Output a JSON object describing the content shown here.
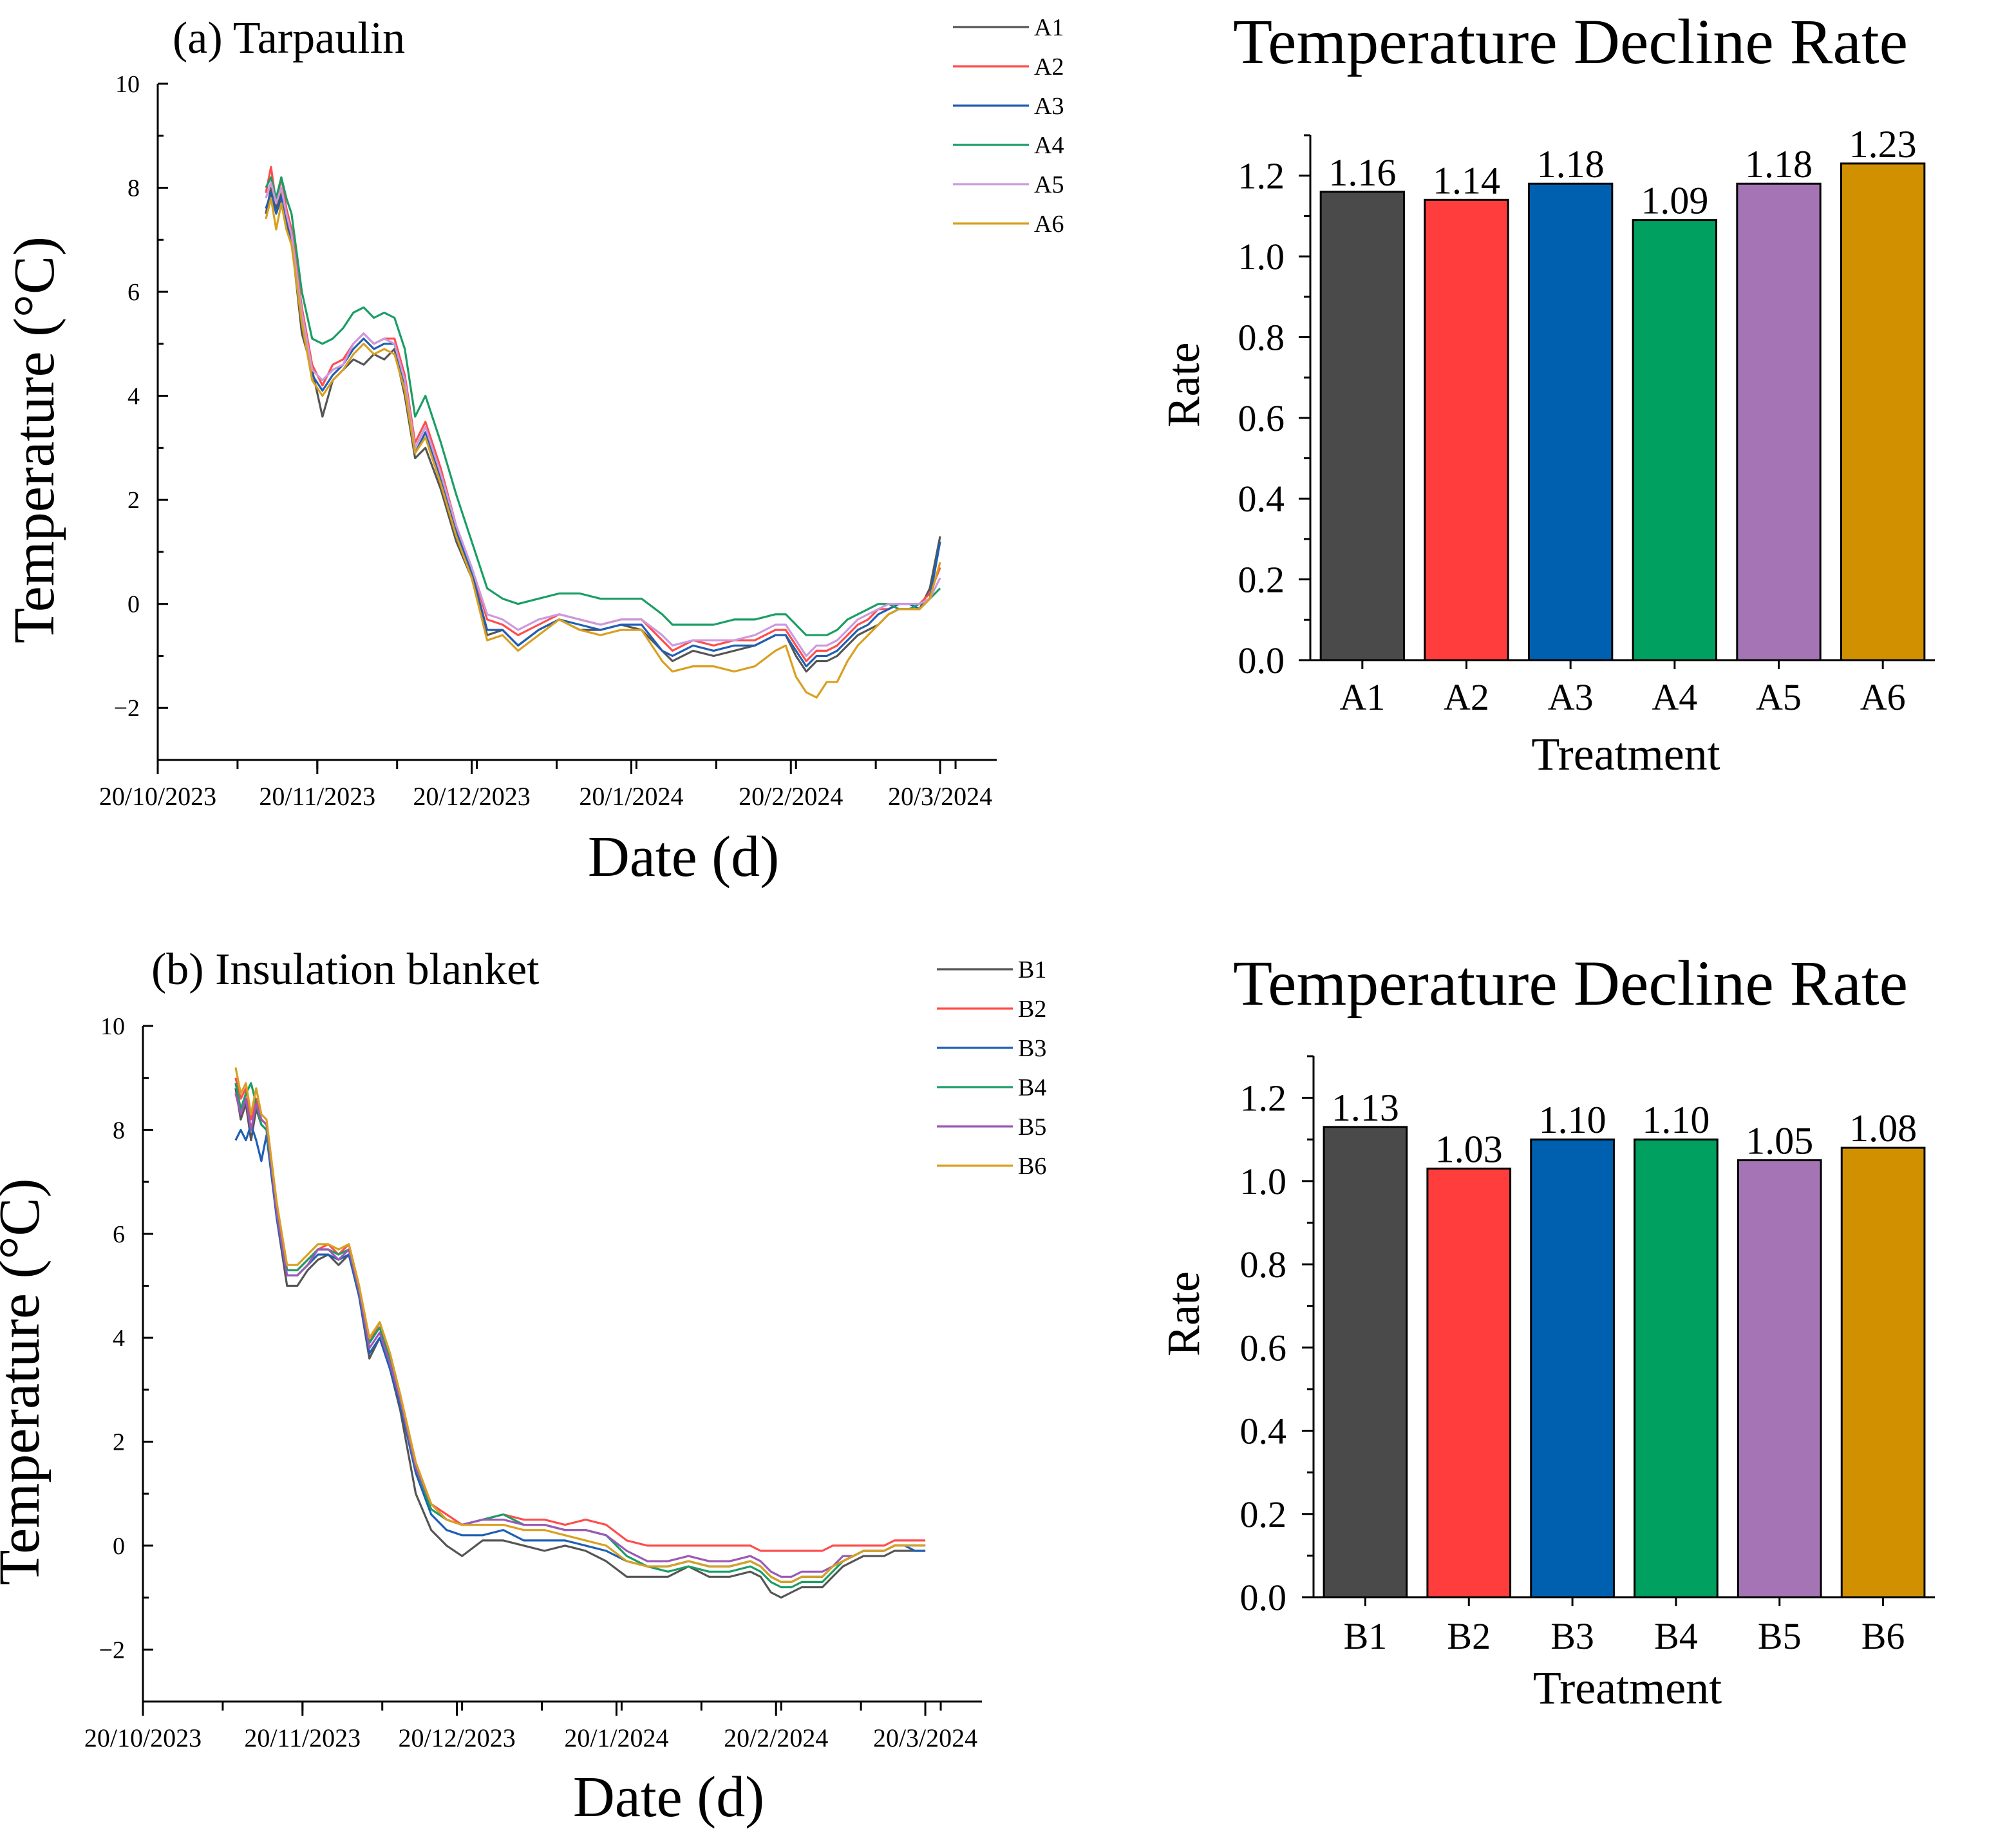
{
  "chart_data": [
    {
      "type": "line",
      "id": "a",
      "title": "(a) Tarpaulin",
      "xlabel": "Date (d)",
      "ylabel": "Temperature (°C)",
      "ylim": [
        -3,
        10
      ],
      "yticks": [
        -2,
        0,
        2,
        4,
        6,
        8,
        10
      ],
      "xlim": [
        0,
        163
      ],
      "xticks": [
        {
          "day": 0,
          "label": "20/10/2023"
        },
        {
          "day": 31,
          "label": "20/11/2023"
        },
        {
          "day": 61,
          "label": "20/12/2023"
        },
        {
          "day": 92,
          "label": "20/1/2024"
        },
        {
          "day": 123,
          "label": "20/2/2024"
        },
        {
          "day": 152,
          "label": "20/3/2024"
        }
      ],
      "x": [
        21,
        22,
        23,
        24,
        25,
        26,
        28,
        30,
        32,
        34,
        36,
        38,
        40,
        42,
        44,
        46,
        48,
        50,
        52,
        55,
        58,
        61,
        64,
        67,
        70,
        74,
        78,
        82,
        86,
        90,
        94,
        98,
        100,
        104,
        108,
        112,
        116,
        120,
        122,
        124,
        126,
        128,
        130,
        132,
        134,
        136,
        138,
        140,
        142,
        144,
        146,
        148,
        150,
        152
      ],
      "series": [
        {
          "name": "A1",
          "color": "#555555",
          "values": [
            7.5,
            8.0,
            7.6,
            7.9,
            7.3,
            7.0,
            5.2,
            4.5,
            3.6,
            4.3,
            4.5,
            4.7,
            4.6,
            4.8,
            4.7,
            4.9,
            4.0,
            2.8,
            3.0,
            2.2,
            1.2,
            0.5,
            -0.6,
            -0.5,
            -0.8,
            -0.5,
            -0.3,
            -0.5,
            -0.5,
            -0.4,
            -0.5,
            -0.9,
            -1.1,
            -0.9,
            -1.0,
            -0.9,
            -0.8,
            -0.6,
            -0.6,
            -1.0,
            -1.3,
            -1.1,
            -1.1,
            -1.0,
            -0.8,
            -0.6,
            -0.5,
            -0.4,
            -0.2,
            -0.1,
            -0.1,
            -0.1,
            0.3,
            1.3
          ]
        },
        {
          "name": "A2",
          "color": "#ff4d4d",
          "values": [
            7.9,
            8.4,
            7.7,
            8.2,
            7.6,
            7.2,
            5.7,
            4.6,
            4.2,
            4.6,
            4.7,
            5.0,
            5.2,
            5.0,
            5.1,
            5.1,
            4.4,
            3.1,
            3.5,
            2.6,
            1.5,
            0.7,
            -0.3,
            -0.4,
            -0.6,
            -0.4,
            -0.2,
            -0.3,
            -0.4,
            -0.3,
            -0.3,
            -0.7,
            -0.9,
            -0.7,
            -0.8,
            -0.7,
            -0.7,
            -0.5,
            -0.5,
            -0.8,
            -1.1,
            -0.9,
            -0.9,
            -0.8,
            -0.6,
            -0.4,
            -0.3,
            -0.1,
            -0.1,
            0.0,
            0.0,
            0.0,
            0.2,
            0.7
          ]
        },
        {
          "name": "A3",
          "color": "#1f5fb4",
          "values": [
            7.6,
            7.9,
            7.5,
            7.8,
            7.4,
            7.0,
            5.5,
            4.4,
            4.1,
            4.4,
            4.6,
            4.9,
            5.1,
            4.9,
            5.0,
            5.0,
            4.2,
            2.9,
            3.3,
            2.4,
            1.4,
            0.6,
            -0.5,
            -0.5,
            -0.8,
            -0.5,
            -0.3,
            -0.4,
            -0.5,
            -0.4,
            -0.4,
            -0.9,
            -1.0,
            -0.8,
            -0.9,
            -0.8,
            -0.8,
            -0.6,
            -0.6,
            -0.9,
            -1.2,
            -1.0,
            -1.0,
            -0.9,
            -0.7,
            -0.5,
            -0.4,
            -0.2,
            -0.1,
            0.0,
            0.0,
            -0.1,
            0.1,
            1.2
          ]
        },
        {
          "name": "A4",
          "color": "#1a9e64",
          "values": [
            8.0,
            8.2,
            7.8,
            8.2,
            7.8,
            7.5,
            6.0,
            5.1,
            5.0,
            5.1,
            5.3,
            5.6,
            5.7,
            5.5,
            5.6,
            5.5,
            4.9,
            3.6,
            4.0,
            3.1,
            2.1,
            1.2,
            0.3,
            0.1,
            0.0,
            0.1,
            0.2,
            0.2,
            0.1,
            0.1,
            0.1,
            -0.2,
            -0.4,
            -0.4,
            -0.4,
            -0.3,
            -0.3,
            -0.2,
            -0.2,
            -0.4,
            -0.6,
            -0.6,
            -0.6,
            -0.5,
            -0.3,
            -0.2,
            -0.1,
            0.0,
            0.0,
            -0.1,
            -0.1,
            0.0,
            0.1,
            0.3
          ]
        },
        {
          "name": "A5",
          "color": "#cc99dd",
          "values": [
            7.8,
            8.1,
            7.7,
            8.0,
            7.5,
            7.1,
            5.6,
            4.5,
            4.3,
            4.5,
            4.6,
            5.0,
            5.2,
            5.0,
            5.1,
            5.0,
            4.3,
            3.0,
            3.4,
            2.5,
            1.5,
            0.7,
            -0.2,
            -0.3,
            -0.5,
            -0.3,
            -0.2,
            -0.3,
            -0.4,
            -0.3,
            -0.3,
            -0.6,
            -0.8,
            -0.7,
            -0.7,
            -0.7,
            -0.6,
            -0.4,
            -0.4,
            -0.7,
            -1.0,
            -0.8,
            -0.8,
            -0.7,
            -0.5,
            -0.3,
            -0.2,
            -0.1,
            0.0,
            0.0,
            0.0,
            0.0,
            0.1,
            0.5
          ]
        },
        {
          "name": "A6",
          "color": "#d9a020",
          "values": [
            7.4,
            7.8,
            7.2,
            7.7,
            7.2,
            6.9,
            5.4,
            4.3,
            4.0,
            4.3,
            4.5,
            4.8,
            5.0,
            4.8,
            4.9,
            4.8,
            4.1,
            2.9,
            3.2,
            2.3,
            1.3,
            0.5,
            -0.7,
            -0.6,
            -0.9,
            -0.6,
            -0.3,
            -0.5,
            -0.6,
            -0.5,
            -0.5,
            -1.1,
            -1.3,
            -1.2,
            -1.2,
            -1.3,
            -1.2,
            -0.9,
            -0.8,
            -1.4,
            -1.7,
            -1.8,
            -1.5,
            -1.5,
            -1.1,
            -0.8,
            -0.6,
            -0.4,
            -0.2,
            -0.1,
            -0.1,
            -0.1,
            0.1,
            0.8
          ]
        }
      ]
    },
    {
      "type": "bar",
      "id": "a-rate",
      "title": "Temperature Decline Rate",
      "xlabel": "Treatment",
      "ylabel": "Rate",
      "ylim": [
        0,
        1.3
      ],
      "yticks": [
        "0.0",
        "0.2",
        "0.4",
        "0.6",
        "0.8",
        "1.0",
        "1.2"
      ],
      "categories": [
        "A1",
        "A2",
        "A3",
        "A4",
        "A5",
        "A6"
      ],
      "values": [
        1.16,
        1.14,
        1.18,
        1.09,
        1.18,
        1.23
      ],
      "labels": [
        "1.16",
        "1.14",
        "1.18",
        "1.09",
        "1.18",
        "1.23"
      ],
      "colors": [
        "#4a4a4a",
        "#ff3d3d",
        "#0060b0",
        "#00a060",
        "#a574b4",
        "#d09000"
      ]
    },
    {
      "type": "line",
      "id": "b",
      "title": "(b) Insulation blanket",
      "xlabel": "Date (d)",
      "ylabel": "Temperature (°C)",
      "ylim": [
        -3,
        10
      ],
      "yticks": [
        -2,
        0,
        2,
        4,
        6,
        8,
        10
      ],
      "xlim": [
        0,
        163
      ],
      "xticks": [
        {
          "day": 0,
          "label": "20/10/2023"
        },
        {
          "day": 31,
          "label": "20/11/2023"
        },
        {
          "day": 61,
          "label": "20/12/2023"
        },
        {
          "day": 92,
          "label": "20/1/2024"
        },
        {
          "day": 123,
          "label": "20/2/2024"
        },
        {
          "day": 152,
          "label": "20/3/2024"
        }
      ],
      "x": [
        18,
        19,
        20,
        21,
        22,
        23,
        24,
        26,
        28,
        30,
        32,
        34,
        36,
        38,
        40,
        42,
        44,
        46,
        48,
        50,
        53,
        56,
        59,
        62,
        66,
        70,
        74,
        78,
        82,
        86,
        90,
        94,
        98,
        102,
        106,
        110,
        114,
        118,
        120,
        122,
        124,
        126,
        128,
        130,
        132,
        134,
        136,
        138,
        140,
        142,
        144,
        146,
        148,
        150,
        152
      ],
      "series": [
        {
          "name": "B1",
          "color": "#555555",
          "values": [
            8.8,
            8.2,
            8.5,
            7.8,
            8.4,
            8.1,
            8.0,
            6.3,
            5.0,
            5.0,
            5.3,
            5.5,
            5.6,
            5.4,
            5.6,
            4.8,
            3.6,
            4.0,
            3.4,
            2.6,
            1.0,
            0.3,
            0.0,
            -0.2,
            0.1,
            0.1,
            0.0,
            -0.1,
            0.0,
            -0.1,
            -0.3,
            -0.6,
            -0.6,
            -0.6,
            -0.4,
            -0.6,
            -0.6,
            -0.5,
            -0.6,
            -0.9,
            -1.0,
            -0.9,
            -0.8,
            -0.8,
            -0.8,
            -0.6,
            -0.4,
            -0.3,
            -0.2,
            -0.2,
            -0.2,
            -0.1,
            -0.1,
            -0.1,
            -0.1
          ]
        },
        {
          "name": "B2",
          "color": "#ff4d4d",
          "values": [
            9.0,
            8.6,
            8.8,
            8.2,
            8.6,
            8.2,
            8.1,
            6.6,
            5.3,
            5.3,
            5.5,
            5.7,
            5.8,
            5.6,
            5.8,
            5.0,
            3.9,
            4.3,
            3.7,
            2.9,
            1.6,
            0.8,
            0.6,
            0.4,
            0.5,
            0.6,
            0.5,
            0.5,
            0.4,
            0.5,
            0.4,
            0.1,
            0.0,
            0.0,
            0.0,
            0.0,
            0.0,
            0.0,
            -0.1,
            -0.1,
            -0.1,
            -0.1,
            -0.1,
            -0.1,
            -0.1,
            0.0,
            0.0,
            0.0,
            0.0,
            0.0,
            0.0,
            0.1,
            0.1,
            0.1,
            0.1
          ]
        },
        {
          "name": "B3",
          "color": "#1f5fb4",
          "values": [
            7.8,
            8.0,
            7.8,
            8.1,
            7.8,
            7.4,
            7.9,
            6.3,
            5.2,
            5.2,
            5.4,
            5.6,
            5.6,
            5.5,
            5.6,
            4.8,
            3.7,
            4.0,
            3.4,
            2.7,
            1.4,
            0.6,
            0.3,
            0.2,
            0.2,
            0.3,
            0.1,
            0.1,
            0.1,
            0.0,
            -0.1,
            -0.3,
            -0.4,
            -0.4,
            -0.3,
            -0.4,
            -0.4,
            -0.3,
            -0.4,
            -0.6,
            -0.7,
            -0.7,
            -0.6,
            -0.6,
            -0.6,
            -0.4,
            -0.3,
            -0.2,
            -0.1,
            -0.1,
            -0.1,
            0.0,
            0.0,
            -0.1,
            -0.1
          ]
        },
        {
          "name": "B4",
          "color": "#1a9e64",
          "values": [
            8.9,
            8.4,
            8.7,
            8.9,
            8.5,
            8.1,
            8.0,
            6.5,
            5.3,
            5.3,
            5.5,
            5.7,
            5.7,
            5.6,
            5.7,
            4.9,
            3.9,
            4.2,
            3.6,
            2.8,
            1.5,
            0.7,
            0.5,
            0.4,
            0.5,
            0.6,
            0.4,
            0.4,
            0.3,
            0.3,
            0.2,
            -0.2,
            -0.4,
            -0.5,
            -0.4,
            -0.5,
            -0.5,
            -0.4,
            -0.5,
            -0.7,
            -0.8,
            -0.8,
            -0.7,
            -0.7,
            -0.7,
            -0.5,
            -0.3,
            -0.2,
            -0.1,
            -0.1,
            -0.1,
            0.0,
            0.0,
            0.0,
            0.0
          ]
        },
        {
          "name": "B5",
          "color": "#9b59b6",
          "values": [
            8.7,
            8.3,
            8.6,
            8.0,
            8.5,
            8.2,
            8.1,
            6.4,
            5.2,
            5.2,
            5.4,
            5.7,
            5.7,
            5.5,
            5.7,
            4.9,
            3.8,
            4.1,
            3.5,
            2.8,
            1.5,
            0.8,
            0.5,
            0.4,
            0.5,
            0.5,
            0.4,
            0.4,
            0.3,
            0.3,
            0.2,
            -0.1,
            -0.3,
            -0.3,
            -0.2,
            -0.3,
            -0.3,
            -0.2,
            -0.3,
            -0.5,
            -0.6,
            -0.6,
            -0.5,
            -0.5,
            -0.5,
            -0.4,
            -0.2,
            -0.2,
            -0.1,
            -0.1,
            -0.1,
            0.0,
            0.0,
            0.0,
            0.0
          ]
        },
        {
          "name": "B6",
          "color": "#d9a020",
          "values": [
            9.2,
            8.7,
            8.9,
            8.3,
            8.8,
            8.3,
            8.2,
            6.6,
            5.4,
            5.4,
            5.6,
            5.8,
            5.8,
            5.7,
            5.8,
            5.0,
            4.0,
            4.3,
            3.7,
            2.9,
            1.6,
            0.8,
            0.5,
            0.4,
            0.4,
            0.4,
            0.3,
            0.3,
            0.2,
            0.1,
            0.0,
            -0.3,
            -0.4,
            -0.4,
            -0.3,
            -0.4,
            -0.4,
            -0.3,
            -0.4,
            -0.6,
            -0.7,
            -0.7,
            -0.6,
            -0.6,
            -0.6,
            -0.4,
            -0.3,
            -0.2,
            -0.1,
            -0.1,
            -0.1,
            0.0,
            0.0,
            0.0,
            0.0
          ]
        }
      ]
    },
    {
      "type": "bar",
      "id": "b-rate",
      "title": "Temperature Decline Rate",
      "xlabel": "Treatment",
      "ylabel": "Rate",
      "ylim": [
        0,
        1.3
      ],
      "yticks": [
        "0.0",
        "0.2",
        "0.4",
        "0.6",
        "0.8",
        "1.0",
        "1.2"
      ],
      "categories": [
        "B1",
        "B2",
        "B3",
        "B4",
        "B5",
        "B6"
      ],
      "values": [
        1.13,
        1.03,
        1.1,
        1.1,
        1.05,
        1.08
      ],
      "labels": [
        "1.13",
        "1.03",
        "1.10",
        "1.10",
        "1.05",
        "1.08"
      ],
      "colors": [
        "#4a4a4a",
        "#ff3d3d",
        "#0060b0",
        "#00a060",
        "#a574b4",
        "#d09000"
      ]
    }
  ]
}
